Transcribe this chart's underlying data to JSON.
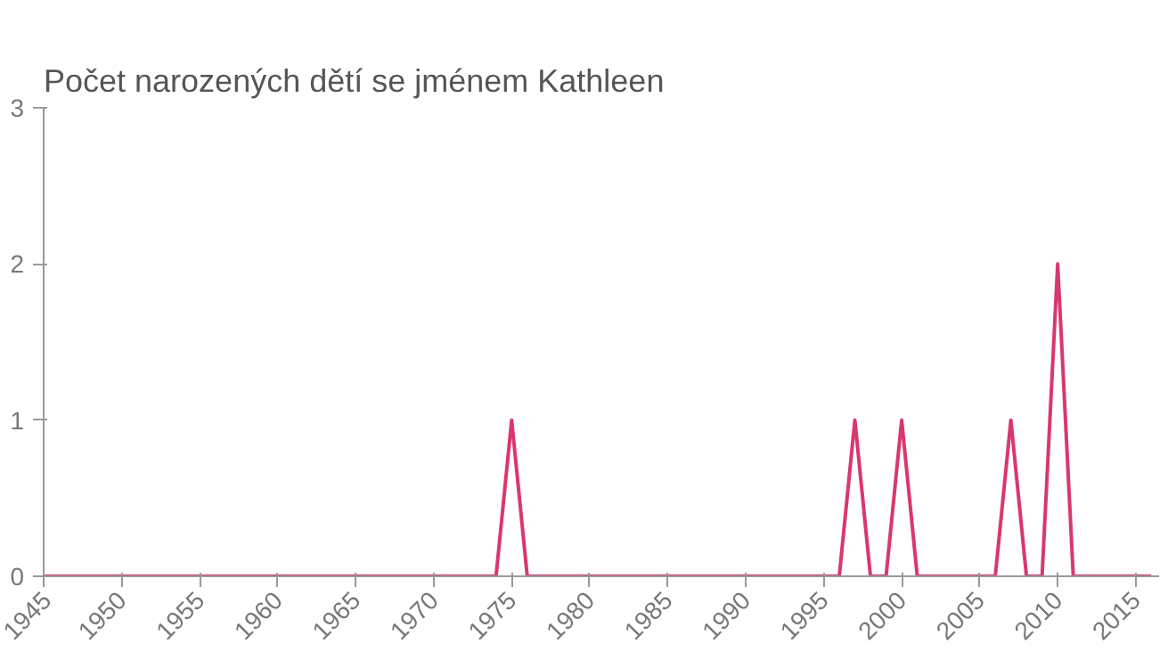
{
  "chart_data": {
    "type": "line",
    "title": "Počet narozených dětí se jménem Kathleen",
    "x": [
      1945,
      1946,
      1947,
      1948,
      1949,
      1950,
      1951,
      1952,
      1953,
      1954,
      1955,
      1956,
      1957,
      1958,
      1959,
      1960,
      1961,
      1962,
      1963,
      1964,
      1965,
      1966,
      1967,
      1968,
      1969,
      1970,
      1971,
      1972,
      1973,
      1974,
      1975,
      1976,
      1977,
      1978,
      1979,
      1980,
      1981,
      1982,
      1983,
      1984,
      1985,
      1986,
      1987,
      1988,
      1989,
      1990,
      1991,
      1992,
      1993,
      1994,
      1995,
      1996,
      1997,
      1998,
      1999,
      2000,
      2001,
      2002,
      2003,
      2004,
      2005,
      2006,
      2007,
      2008,
      2009,
      2010,
      2011,
      2012,
      2013,
      2014,
      2015,
      2016
    ],
    "series": [
      {
        "color": "#d9386c",
        "values": [
          0,
          0,
          0,
          0,
          0,
          0,
          0,
          0,
          0,
          0,
          0,
          0,
          0,
          0,
          0,
          0,
          0,
          0,
          0,
          0,
          0,
          0,
          0,
          0,
          0,
          0,
          0,
          0,
          0,
          0,
          1,
          0,
          0,
          0,
          0,
          0,
          0,
          0,
          0,
          0,
          0,
          0,
          0,
          0,
          0,
          0,
          0,
          0,
          0,
          0,
          0,
          0,
          1,
          0,
          0,
          1,
          0,
          0,
          0,
          0,
          0,
          0,
          1,
          0,
          0,
          2,
          0,
          0,
          0,
          0,
          0,
          0
        ]
      }
    ],
    "xlim": [
      1945,
      2016.5
    ],
    "xticks": [
      1945,
      1950,
      1955,
      1960,
      1965,
      1970,
      1975,
      1980,
      1985,
      1990,
      1995,
      2000,
      2005,
      2010,
      2015
    ],
    "ylim": [
      0,
      3
    ],
    "yticks": [
      0,
      1,
      2,
      3
    ],
    "grid": false
  }
}
